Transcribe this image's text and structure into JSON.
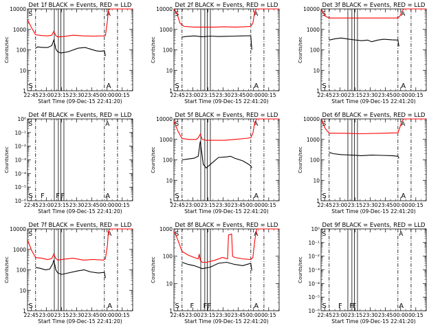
{
  "colors": {
    "events": "#000000",
    "lld": "#ff0000",
    "axes": "#000000",
    "background": "#ffffff"
  },
  "common": {
    "xlabel": "Start Time (09-Dec-15 22:41:20)",
    "ylabel": "Counts/sec",
    "x_ticks": [
      "22:45",
      "23:00",
      "23:15",
      "23:30",
      "23:45",
      "00:00",
      "00:15"
    ],
    "x_tick_minutes": [
      3.67,
      18.67,
      33.67,
      48.67,
      63.67,
      78.67,
      93.67
    ],
    "xlim_minutes": [
      0,
      104
    ],
    "dashdot_minutes": [
      8,
      76,
      89
    ],
    "solid_minutes": [
      26.5,
      30.5,
      33,
      36
    ]
  },
  "chart_data": [
    {
      "type": "line",
      "title": "Det 1f BLACK = Events, RED = LLD",
      "y_scale": "log",
      "ylim": [
        1,
        10000
      ],
      "y_ticks": [
        "1",
        "10",
        "100",
        "1000",
        "10000"
      ],
      "flags": [
        {
          "label": "S",
          "x": 1
        },
        {
          "label": "A",
          "x": 78
        }
      ],
      "series": [
        {
          "key": "lld",
          "x": [
            0,
            4,
            8,
            14,
            20,
            24,
            26,
            28,
            30,
            36,
            45,
            55,
            65,
            75,
            77,
            79,
            80,
            82,
            104
          ],
          "values": [
            3000,
            1200,
            550,
            500,
            480,
            520,
            800,
            500,
            430,
            450,
            520,
            480,
            470,
            480,
            500,
            2500,
            9000,
            10000,
            10000
          ]
        },
        {
          "key": "events",
          "x": [
            8,
            10,
            15,
            20,
            24,
            26,
            28,
            30,
            33,
            40,
            50,
            57,
            62,
            68,
            72,
            76,
            77
          ],
          "values": [
            120,
            140,
            130,
            130,
            160,
            300,
            110,
            80,
            70,
            80,
            120,
            130,
            110,
            90,
            85,
            90,
            50
          ]
        }
      ]
    },
    {
      "type": "line",
      "title": "Det 2f BLACK = Events, RED = LLD",
      "y_scale": "log",
      "ylim": [
        1,
        10000
      ],
      "y_ticks": [
        "1",
        "10",
        "100",
        "1000",
        "10000"
      ],
      "flags": [
        {
          "label": "S",
          "x": 1
        },
        {
          "label": "A",
          "x": 79
        }
      ],
      "series": [
        {
          "key": "lld",
          "x": [
            0,
            3,
            6,
            10,
            20,
            30,
            40,
            50,
            60,
            70,
            76,
            78,
            80,
            82,
            104
          ],
          "values": [
            10000,
            6000,
            2000,
            1400,
            1300,
            1300,
            1300,
            1350,
            1300,
            1350,
            1400,
            2000,
            8000,
            10000,
            10000
          ]
        },
        {
          "key": "events",
          "x": [
            8,
            12,
            20,
            28,
            36,
            44,
            52,
            60,
            68,
            76,
            77
          ],
          "values": [
            420,
            450,
            480,
            440,
            470,
            450,
            460,
            470,
            480,
            490,
            100
          ]
        }
      ]
    },
    {
      "type": "line",
      "title": "Det 3f BLACK = Events, RED = LLD",
      "y_scale": "log",
      "ylim": [
        1,
        10000
      ],
      "y_ticks": [
        "1",
        "10",
        "100",
        "1000",
        "10000"
      ],
      "flags": [
        {
          "label": "S",
          "x": 1
        },
        {
          "label": "A",
          "x": 79
        }
      ],
      "series": [
        {
          "key": "lld",
          "x": [
            0,
            4,
            8,
            20,
            40,
            60,
            76,
            78,
            80,
            82,
            104
          ],
          "values": [
            10000,
            4500,
            3600,
            3600,
            3600,
            3600,
            3600,
            4500,
            8000,
            10000,
            10000
          ]
        },
        {
          "key": "events",
          "x": [
            8,
            14,
            20,
            30,
            40,
            46,
            50,
            56,
            62,
            70,
            76,
            77
          ],
          "values": [
            300,
            350,
            380,
            320,
            280,
            300,
            250,
            300,
            330,
            310,
            300,
            150
          ]
        }
      ]
    },
    {
      "type": "line",
      "title": "Det 4f BLACK = Events, RED = LLD",
      "y_scale": "log",
      "ylim": [
        1e-06,
        1
      ],
      "y_ticks": [
        "10⁻⁶",
        "10⁻⁵",
        "10⁻⁴",
        "10⁻³",
        "10⁻²",
        "10⁻¹",
        "10⁰"
      ],
      "flags": [
        {
          "label": "S",
          "x": 1
        },
        {
          "label": "F",
          "x": 13
        },
        {
          "label": "F",
          "x": 28
        },
        {
          "label": "F",
          "x": 33
        },
        {
          "label": "A",
          "x": 77
        }
      ],
      "series": []
    },
    {
      "type": "line",
      "title": "Det 5f BLACK = Events, RED = LLD",
      "y_scale": "log",
      "ylim": [
        1,
        10000
      ],
      "y_ticks": [
        "1",
        "10",
        "100",
        "1000",
        "10000"
      ],
      "flags": [
        {
          "label": "S",
          "x": 1
        },
        {
          "label": "A",
          "x": 79
        }
      ],
      "series": [
        {
          "key": "lld",
          "x": [
            0,
            4,
            8,
            15,
            22,
            24,
            26,
            28,
            32,
            40,
            50,
            60,
            70,
            76,
            78,
            80,
            82,
            104
          ],
          "values": [
            8000,
            2500,
            1100,
            1000,
            1000,
            1200,
            1800,
            1000,
            900,
            900,
            900,
            1000,
            1100,
            1200,
            2000,
            7000,
            10000,
            10000
          ]
        },
        {
          "key": "events",
          "x": [
            8,
            14,
            20,
            24,
            26,
            29,
            32,
            36,
            44,
            52,
            56,
            60,
            68,
            74,
            76,
            77
          ],
          "values": [
            100,
            110,
            120,
            150,
            800,
            60,
            40,
            60,
            130,
            140,
            150,
            120,
            90,
            60,
            50,
            40
          ]
        }
      ]
    },
    {
      "type": "line",
      "title": "Det 6f BLACK = Events, RED = LLD",
      "y_scale": "log",
      "ylim": [
        1,
        10000
      ],
      "y_ticks": [
        "1",
        "10",
        "100",
        "1000",
        "10000"
      ],
      "flags": [
        {
          "label": "S",
          "x": 1
        },
        {
          "label": "A",
          "x": 79
        }
      ],
      "series": [
        {
          "key": "lld",
          "x": [
            0,
            4,
            8,
            20,
            40,
            60,
            76,
            78,
            80,
            82,
            104
          ],
          "values": [
            10000,
            3500,
            2000,
            2000,
            1900,
            2000,
            2100,
            4000,
            8000,
            10000,
            10000
          ]
        },
        {
          "key": "events",
          "x": [
            8,
            12,
            20,
            30,
            40,
            50,
            60,
            70,
            76,
            77
          ],
          "values": [
            230,
            200,
            180,
            170,
            160,
            170,
            165,
            160,
            150,
            120
          ]
        }
      ]
    },
    {
      "type": "line",
      "title": "Det 7f BLACK = Events, RED = LLD",
      "y_scale": "log",
      "ylim": [
        1,
        10000
      ],
      "y_ticks": [
        "1",
        "10",
        "100",
        "1000",
        "10000"
      ],
      "flags": [
        {
          "label": "S",
          "x": 1
        },
        {
          "label": "A",
          "x": 79
        }
      ],
      "series": [
        {
          "key": "lld",
          "x": [
            0,
            4,
            8,
            14,
            20,
            24,
            26,
            28,
            30,
            36,
            45,
            55,
            65,
            75,
            77,
            79,
            80,
            82,
            104
          ],
          "values": [
            3000,
            900,
            400,
            370,
            320,
            360,
            600,
            360,
            300,
            330,
            370,
            300,
            320,
            300,
            350,
            1500,
            8000,
            10000,
            10000
          ]
        },
        {
          "key": "events",
          "x": [
            8,
            12,
            18,
            22,
            25,
            26,
            28,
            30,
            34,
            40,
            50,
            56,
            62,
            70,
            76,
            77
          ],
          "values": [
            130,
            120,
            100,
            110,
            200,
            300,
            100,
            70,
            60,
            70,
            90,
            100,
            80,
            70,
            75,
            40
          ]
        }
      ]
    },
    {
      "type": "line",
      "title": "Det 8f BLACK = Events, RED = LLD",
      "y_scale": "log",
      "ylim": [
        1,
        1000
      ],
      "y_ticks": [
        "1",
        "10",
        "100",
        "1000"
      ],
      "flags": [
        {
          "label": "S",
          "x": 1
        },
        {
          "label": "F",
          "x": 16
        },
        {
          "label": "F",
          "x": 29
        },
        {
          "label": "F",
          "x": 33
        },
        {
          "label": "A",
          "x": 79
        }
      ],
      "series": [
        {
          "key": "lld",
          "x": [
            0,
            2,
            5,
            8,
            14,
            20,
            24,
            25,
            26,
            28,
            32,
            40,
            48,
            53,
            54,
            57,
            58,
            60,
            68,
            76,
            78,
            80,
            82,
            104
          ],
          "values": [
            800,
            600,
            300,
            150,
            110,
            90,
            80,
            120,
            70,
            60,
            60,
            70,
            90,
            80,
            600,
            650,
            100,
            90,
            80,
            75,
            90,
            400,
            1000,
            1000
          ]
        },
        {
          "key": "events",
          "x": [
            8,
            14,
            20,
            24,
            28,
            36,
            44,
            52,
            60,
            68,
            76,
            77
          ],
          "values": [
            60,
            50,
            45,
            40,
            35,
            40,
            55,
            60,
            50,
            45,
            55,
            30
          ]
        }
      ]
    },
    {
      "type": "line",
      "title": "Det 9f BLACK = Events, RED = LLD",
      "y_scale": "log",
      "ylim": [
        1e-06,
        1
      ],
      "y_ticks": [
        "10⁻⁶",
        "10⁻⁵",
        "10⁻⁴",
        "10⁻³",
        "10⁻²",
        "10⁻¹",
        "10⁰"
      ],
      "flags": [
        {
          "label": "S",
          "x": 1
        },
        {
          "label": "F",
          "x": 17
        },
        {
          "label": "F",
          "x": 28
        },
        {
          "label": "F",
          "x": 31
        },
        {
          "label": "A",
          "x": 77
        }
      ],
      "series": []
    }
  ]
}
